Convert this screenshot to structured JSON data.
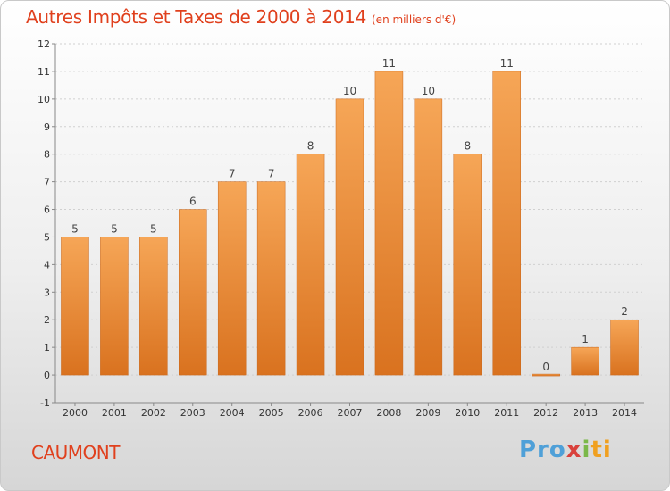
{
  "title": "Autres Impôts et Taxes de 2000 à 2014",
  "subtitle": "(en milliers d'€)",
  "commune": "CAUMONT",
  "brand": {
    "p1": "Pro",
    "p2": "x",
    "p3": "i",
    "p4": "ti"
  },
  "colors": {
    "title": "#e0401d",
    "bar_top": "#f6a657",
    "bar_bottom": "#d9721f"
  },
  "chart_data": {
    "type": "bar",
    "categories": [
      "2000",
      "2001",
      "2002",
      "2003",
      "2004",
      "2005",
      "2006",
      "2007",
      "2008",
      "2009",
      "2010",
      "2011",
      "2012",
      "2013",
      "2014"
    ],
    "values": [
      5,
      5,
      5,
      6,
      7,
      7,
      8,
      10,
      11,
      10,
      8,
      11,
      0,
      1,
      2
    ],
    "yticks": [
      "-1",
      "0",
      "1",
      "2",
      "3",
      "4",
      "5",
      "6",
      "7",
      "8",
      "9",
      "10",
      "11",
      "12"
    ],
    "ylim": [
      -1,
      12
    ],
    "grid": true,
    "title": "Autres Impôts et Taxes de 2000 à 2014",
    "xlabel": "",
    "ylabel": ""
  }
}
